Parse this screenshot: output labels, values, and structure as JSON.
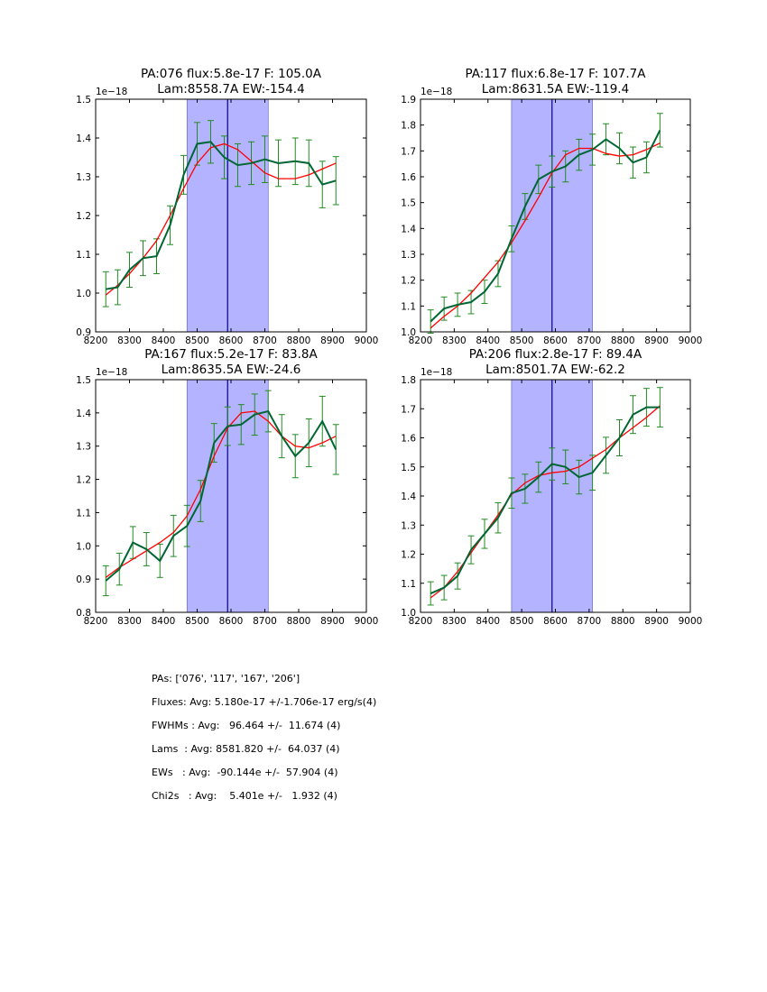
{
  "chart_data": [
    {
      "type": "line",
      "title_line1": "PA:076 flux:5.8e-17 F: 105.0A",
      "title_line2": "Lam:8558.7A EW:-154.4",
      "offset_label": "1e−18",
      "xlim": [
        8200,
        9000
      ],
      "ylim": [
        0.9,
        1.5
      ],
      "xticks": [
        "8200",
        "8300",
        "8400",
        "8500",
        "8600",
        "8700",
        "8800",
        "8900",
        "9000"
      ],
      "yticks": [
        "0.9",
        "1.0",
        "1.1",
        "1.2",
        "1.3",
        "1.4",
        "1.5"
      ],
      "band": [
        8470,
        8710
      ],
      "center_line": 8590,
      "colors": {
        "data": "#006633",
        "fit": "#ff0000",
        "band": "#b3b3ff",
        "center": "#000099"
      },
      "x": [
        8230,
        8265,
        8300,
        8340,
        8380,
        8420,
        8460,
        8500,
        8540,
        8580,
        8620,
        8660,
        8700,
        8740,
        8790,
        8830,
        8870,
        8910
      ],
      "series": [
        {
          "values": [
            1.01,
            1.015,
            1.06,
            1.09,
            1.095,
            1.175,
            1.305,
            1.385,
            1.39,
            1.35,
            1.33,
            1.335,
            1.345,
            1.335,
            1.34,
            1.335,
            1.28,
            1.29
          ],
          "errors": [
            0.045,
            0.045,
            0.045,
            0.045,
            0.045,
            0.05,
            0.05,
            0.055,
            0.055,
            0.055,
            0.055,
            0.055,
            0.06,
            0.06,
            0.06,
            0.06,
            0.06,
            0.062
          ]
        },
        {
          "values": [
            0.995,
            1.02,
            1.05,
            1.09,
            1.135,
            1.2,
            1.27,
            1.335,
            1.375,
            1.385,
            1.37,
            1.34,
            1.31,
            1.295,
            1.295,
            1.305,
            1.32,
            1.335
          ]
        }
      ]
    },
    {
      "type": "line",
      "title_line1": "PA:117 flux:6.8e-17 F: 107.7A",
      "title_line2": "Lam:8631.5A EW:-119.4",
      "offset_label": "1e−18",
      "xlim": [
        8200,
        9000
      ],
      "ylim": [
        1.0,
        1.9
      ],
      "xticks": [
        "8200",
        "8300",
        "8400",
        "8500",
        "8600",
        "8700",
        "8800",
        "8900",
        "9000"
      ],
      "yticks": [
        "1.0",
        "1.1",
        "1.2",
        "1.3",
        "1.4",
        "1.5",
        "1.6",
        "1.7",
        "1.8",
        "1.9"
      ],
      "band": [
        8470,
        8710
      ],
      "center_line": 8590,
      "colors": {
        "data": "#006633",
        "fit": "#ff0000",
        "band": "#b3b3ff",
        "center": "#000099"
      },
      "x": [
        8230,
        8270,
        8310,
        8350,
        8390,
        8430,
        8470,
        8510,
        8550,
        8590,
        8630,
        8670,
        8710,
        8750,
        8790,
        8830,
        8870,
        8910
      ],
      "series": [
        {
          "values": [
            1.04,
            1.09,
            1.105,
            1.115,
            1.155,
            1.225,
            1.36,
            1.485,
            1.59,
            1.62,
            1.64,
            1.685,
            1.705,
            1.745,
            1.71,
            1.655,
            1.675,
            1.78
          ],
          "errors": [
            0.045,
            0.045,
            0.045,
            0.045,
            0.045,
            0.05,
            0.05,
            0.05,
            0.055,
            0.06,
            0.06,
            0.06,
            0.06,
            0.06,
            0.06,
            0.06,
            0.06,
            0.065
          ]
        },
        {
          "values": [
            1.015,
            1.06,
            1.1,
            1.15,
            1.21,
            1.27,
            1.345,
            1.43,
            1.52,
            1.615,
            1.685,
            1.71,
            1.71,
            1.69,
            1.68,
            1.685,
            1.705,
            1.73
          ]
        }
      ]
    },
    {
      "type": "line",
      "title_line1": "PA:167 flux:5.2e-17 F: 83.8A",
      "title_line2": "Lam:8635.5A EW:-24.6",
      "offset_label": "1e−18",
      "xlim": [
        8200,
        9000
      ],
      "ylim": [
        0.8,
        1.5
      ],
      "xticks": [
        "8200",
        "8300",
        "8400",
        "8500",
        "8600",
        "8700",
        "8800",
        "8900",
        "9000"
      ],
      "yticks": [
        "0.8",
        "0.9",
        "1.0",
        "1.1",
        "1.2",
        "1.3",
        "1.4",
        "1.5"
      ],
      "band": [
        8470,
        8710
      ],
      "center_line": 8590,
      "colors": {
        "data": "#006633",
        "fit": "#ff0000",
        "band": "#b3b3ff",
        "center": "#000099"
      },
      "x": [
        8230,
        8270,
        8310,
        8350,
        8390,
        8430,
        8470,
        8510,
        8550,
        8590,
        8630,
        8670,
        8710,
        8750,
        8790,
        8830,
        8870,
        8910
      ],
      "series": [
        {
          "values": [
            0.895,
            0.93,
            1.01,
            0.99,
            0.955,
            1.03,
            1.06,
            1.135,
            1.31,
            1.36,
            1.365,
            1.395,
            1.405,
            1.33,
            1.27,
            1.31,
            1.375,
            1.29
          ],
          "errors": [
            0.045,
            0.048,
            0.048,
            0.05,
            0.05,
            0.062,
            0.062,
            0.062,
            0.058,
            0.058,
            0.06,
            0.062,
            0.062,
            0.065,
            0.065,
            0.072,
            0.075,
            0.075
          ]
        },
        {
          "values": [
            0.905,
            0.935,
            0.96,
            0.985,
            1.01,
            1.04,
            1.09,
            1.17,
            1.27,
            1.355,
            1.4,
            1.405,
            1.375,
            1.33,
            1.3,
            1.295,
            1.31,
            1.33
          ]
        }
      ]
    },
    {
      "type": "line",
      "title_line1": "PA:206 flux:2.8e-17 F: 89.4A",
      "title_line2": "Lam:8501.7A EW:-62.2",
      "offset_label": "1e−18",
      "xlim": [
        8200,
        9000
      ],
      "ylim": [
        1.0,
        1.8
      ],
      "xticks": [
        "8200",
        "8300",
        "8400",
        "8500",
        "8600",
        "8700",
        "8800",
        "8900",
        "9000"
      ],
      "yticks": [
        "1.0",
        "1.1",
        "1.2",
        "1.3",
        "1.4",
        "1.5",
        "1.6",
        "1.7",
        "1.8"
      ],
      "band": [
        8470,
        8710
      ],
      "center_line": 8590,
      "colors": {
        "data": "#006633",
        "fit": "#ff0000",
        "band": "#b3b3ff",
        "center": "#000099"
      },
      "x": [
        8230,
        8270,
        8310,
        8350,
        8390,
        8430,
        8470,
        8510,
        8550,
        8590,
        8630,
        8670,
        8710,
        8750,
        8790,
        8830,
        8870,
        8910
      ],
      "series": [
        {
          "values": [
            1.065,
            1.085,
            1.125,
            1.215,
            1.27,
            1.325,
            1.41,
            1.425,
            1.465,
            1.51,
            1.5,
            1.465,
            1.48,
            1.54,
            1.6,
            1.68,
            1.705,
            1.705
          ],
          "errors": [
            0.04,
            0.042,
            0.045,
            0.048,
            0.05,
            0.052,
            0.052,
            0.05,
            0.052,
            0.055,
            0.058,
            0.058,
            0.06,
            0.062,
            0.062,
            0.065,
            0.065,
            0.068
          ]
        },
        {
          "values": [
            1.05,
            1.085,
            1.14,
            1.205,
            1.27,
            1.335,
            1.405,
            1.445,
            1.47,
            1.48,
            1.485,
            1.5,
            1.53,
            1.56,
            1.6,
            1.635,
            1.67,
            1.71
          ]
        }
      ]
    }
  ],
  "summary": {
    "pas": "PAs: ['076', '117', '167', '206']",
    "fluxes": "Fluxes: Avg: 5.180e-17 +/-1.706e-17 erg/s(4)",
    "fwhms": "FWHMs : Avg:   96.464 +/-  11.674 (4)",
    "lams": "Lams  : Avg: 8581.820 +/-  64.037 (4)",
    "ews": "EWs   : Avg:  -90.144e +/-  57.904 (4)",
    "chi2s": "Chi2s   : Avg:    5.401e +/-   1.932 (4)"
  }
}
